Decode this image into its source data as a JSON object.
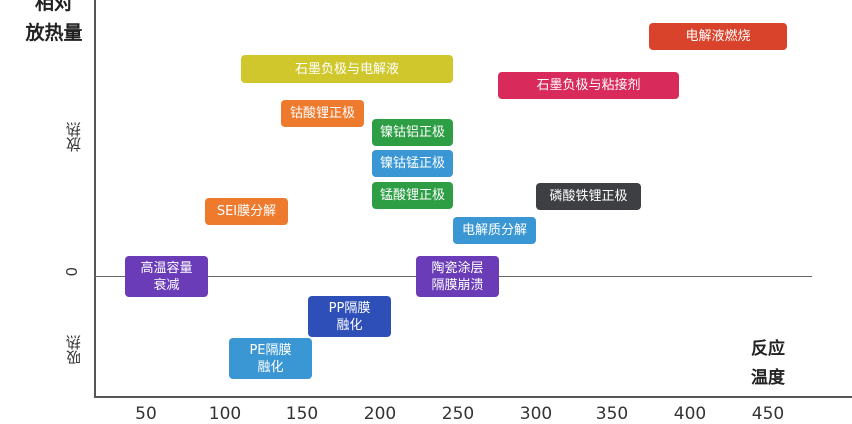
{
  "y_axis": {
    "title_line1": "相对",
    "title_line2": "放热量",
    "upper_label": "放热",
    "zero_label": "0",
    "lower_label": "吸热"
  },
  "x_axis": {
    "title_line1": "反应",
    "title_line2": "温度",
    "ticks": [
      "50",
      "100",
      "150",
      "200",
      "250",
      "300",
      "350",
      "400",
      "450"
    ]
  },
  "events": [
    {
      "label": "电解液燃烧",
      "color": "#D9432B"
    },
    {
      "label": "石墨负极与电解液",
      "color": "#CFC72C"
    },
    {
      "label": "石墨负极与粘接剂",
      "color": "#D82A5B"
    },
    {
      "label": "钴酸锂正极",
      "color": "#EE7A2E"
    },
    {
      "label": "镍钴铝正极",
      "color": "#2E9E45"
    },
    {
      "label": "镍钴锰正极",
      "color": "#3A97D3"
    },
    {
      "label": "锰酸锂正极",
      "color": "#2E9E45"
    },
    {
      "label": "磷酸铁锂正极",
      "color": "#3E3F42"
    },
    {
      "label": "SEI膜分解",
      "color": "#EE7A2E"
    },
    {
      "label": "电解质分解",
      "color": "#3A97D3"
    },
    {
      "label": "高温容量\n衰减",
      "color": "#6A3CB8"
    },
    {
      "label": "陶瓷涂层\n隔膜崩溃",
      "color": "#6A3CB8"
    },
    {
      "label": "PP隔膜\n融化",
      "color": "#2E4FB8"
    },
    {
      "label": "PE隔膜\n融化",
      "color": "#3A97D3"
    }
  ]
}
